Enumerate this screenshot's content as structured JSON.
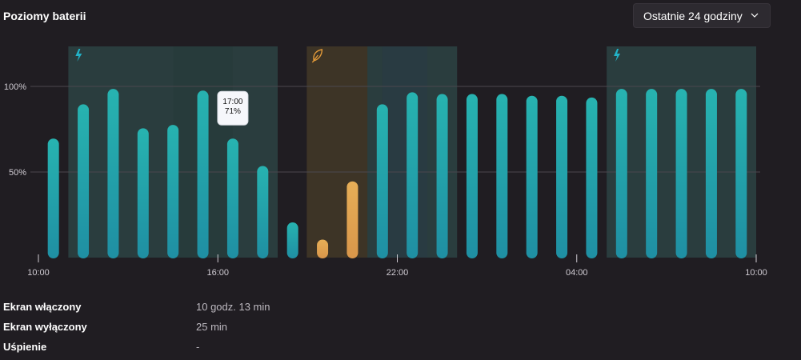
{
  "header": {
    "title": "Poziomy baterii",
    "range_label": "Ostatnie 24 godziny"
  },
  "colors": {
    "bar": "#25a6ac",
    "bar_saver": "#e3a84e",
    "charging_band": "#2a3d3e",
    "charging_band_deep": "#2a3a45",
    "saver_band": "#3d3426",
    "charging_icon": "#22b2c7",
    "saver_icon": "#e39a39",
    "gridline": "#4b474d"
  },
  "chart_data": {
    "type": "bar",
    "categories": [
      "10:30",
      "11:30",
      "12:30",
      "13:30",
      "14:30",
      "15:30",
      "16:30",
      "17:30",
      "18:30",
      "19:30",
      "20:30",
      "21:30",
      "22:30",
      "23:30",
      "00:30",
      "01:30",
      "02:30",
      "03:30",
      "04:30",
      "05:30",
      "06:30",
      "07:30",
      "08:30",
      "09:30"
    ],
    "x_ticks": [
      "10:00",
      "16:00",
      "22:00",
      "04:00",
      "10:00"
    ],
    "y_ticks": [
      "100%",
      "50%"
    ],
    "ylim": [
      0,
      100
    ],
    "series": [
      {
        "values": [
          70,
          90,
          99,
          76,
          78,
          98,
          70,
          54,
          21,
          11,
          45,
          90,
          97,
          96,
          96,
          96,
          95,
          95,
          94,
          99,
          99,
          99,
          99,
          99
        ],
        "modes": [
          "normal",
          "normal",
          "normal",
          "normal",
          "normal",
          "normal",
          "normal",
          "normal",
          "normal",
          "saver",
          "saver",
          "normal",
          "normal",
          "normal",
          "normal",
          "normal",
          "normal",
          "normal",
          "normal",
          "normal",
          "normal",
          "normal",
          "normal",
          "normal"
        ]
      }
    ],
    "charging_periods": [
      [
        "11:00",
        "18:00"
      ],
      [
        "20:00",
        "00:00"
      ],
      [
        "05:00",
        "10:00"
      ]
    ],
    "saver_periods": [
      [
        "19:00",
        "21:00"
      ]
    ],
    "tooltip": {
      "time": "17:00",
      "value": "71%"
    }
  },
  "stats": [
    {
      "label": "Ekran włączony",
      "value": "10 godz. 13 min"
    },
    {
      "label": "Ekran wyłączony",
      "value": "25 min"
    },
    {
      "label": "Uśpienie",
      "value": "-"
    }
  ]
}
